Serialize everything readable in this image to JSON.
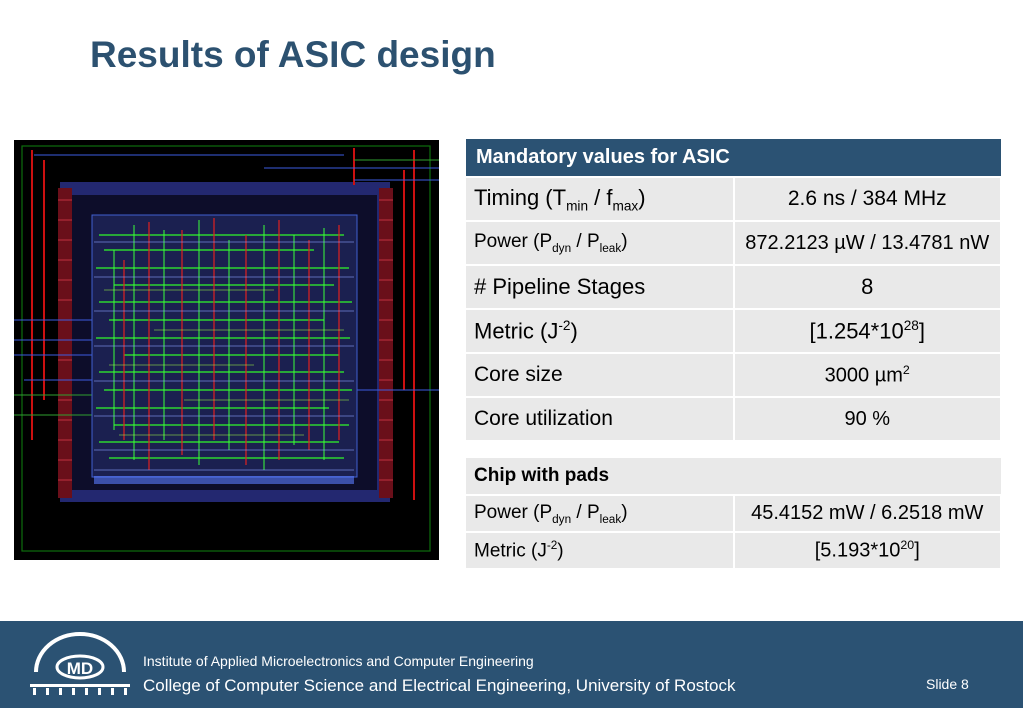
{
  "title": "Results of ASIC design",
  "mandatory": {
    "header": "Mandatory values for ASIC",
    "rows": {
      "timing": {
        "label_pre": "Timing (T",
        "label_sub1": "min",
        "label_mid": " / f",
        "label_sub2": "max",
        "label_post": ")",
        "value": "2.6 ns / 384 MHz"
      },
      "power": {
        "label_pre": "Power (P",
        "label_sub1": "dyn",
        "label_mid": " / P",
        "label_sub2": "leak",
        "label_post": ")",
        "value": "872.2123 µW / 13.4781 nW"
      },
      "pipeline": {
        "label": "# Pipeline Stages",
        "value": "8"
      },
      "metric": {
        "label_pre": "Metric (J",
        "label_sup": "-2",
        "label_post": ")",
        "value_pre": "[1.254*10",
        "value_sup": "28",
        "value_post": "]"
      },
      "core_size": {
        "label": "Core size",
        "value_pre": "3000 µm",
        "value_sup": "2"
      },
      "core_util": {
        "label": "Core utilization",
        "value": "90 %"
      }
    }
  },
  "chip_pads": {
    "header": "Chip with pads",
    "rows": {
      "power": {
        "label_pre": "Power (P",
        "label_sub1": "dyn",
        "label_mid": " / P",
        "label_sub2": "leak",
        "label_post": ")",
        "value": "45.4152 mW / 6.2518 mW"
      },
      "metric": {
        "label_pre": "Metric (J",
        "label_sup": "-2",
        "label_post": ")",
        "value_pre": "[5.193*10",
        "value_sup": "20",
        "value_post": "]"
      }
    }
  },
  "footer": {
    "logo_text": "MD",
    "institute": "Institute of Applied Microelectronics and Computer Engineering",
    "college": "College of Computer Science and Electrical Engineering, University of Rostock",
    "slide_label": "Slide",
    "slide_number": "8"
  },
  "colors": {
    "accent": "#2b5273",
    "title": "#2c5170",
    "cell": "#e9e9e9"
  }
}
